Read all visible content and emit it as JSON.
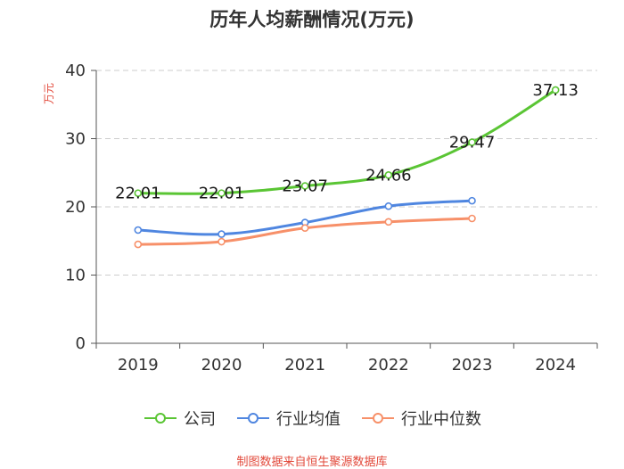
{
  "colors": {
    "accent_text": "#e2483a",
    "axis": "#555555",
    "grid": "#cccccc"
  },
  "chart_data": {
    "type": "line",
    "title": "历年人均薪酬情况(万元)",
    "ylabel": "万元",
    "xlabel": "",
    "categories": [
      "2019",
      "2020",
      "2021",
      "2022",
      "2023",
      "2024"
    ],
    "ylim": [
      0,
      40
    ],
    "yticks": [
      0,
      10,
      20,
      30,
      40
    ],
    "grid": true,
    "legend_position": "bottom-center",
    "series": [
      {
        "name": "公司",
        "color": "#5ac534",
        "values": [
          22.01,
          22.01,
          23.07,
          24.66,
          29.47,
          37.13
        ],
        "labels": [
          "22.01",
          "22.01",
          "23.07",
          "24.66",
          "29.47",
          "37.13"
        ]
      },
      {
        "name": "行业均值",
        "color": "#4f86e0",
        "values": [
          16.6,
          16.0,
          17.7,
          20.1,
          20.9,
          null
        ]
      },
      {
        "name": "行业中位数",
        "color": "#f79069",
        "values": [
          14.5,
          14.9,
          16.9,
          17.8,
          18.3,
          null
        ]
      }
    ],
    "source": "制图数据来自恒生聚源数据库"
  }
}
